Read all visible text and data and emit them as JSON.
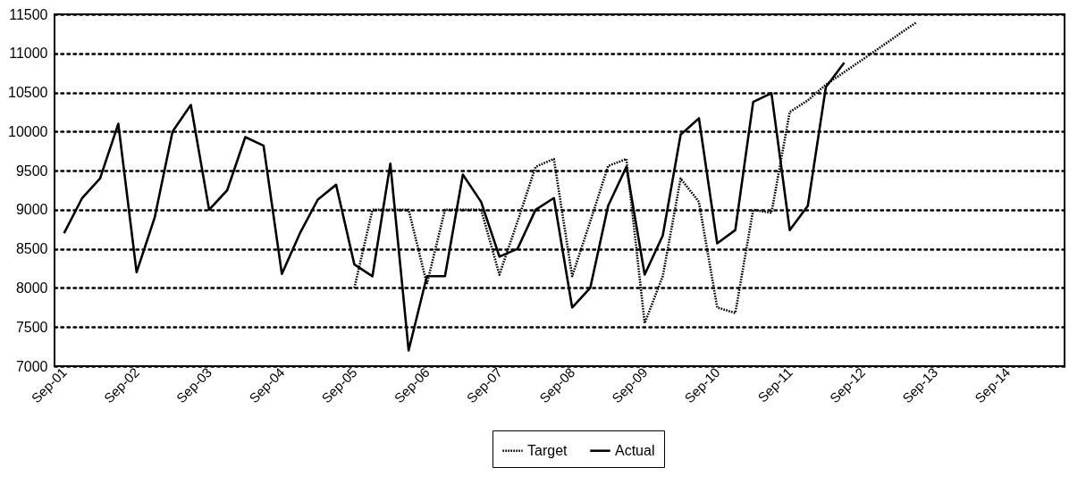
{
  "chart_data": {
    "type": "line",
    "xlim": [
      "2001-07-15",
      "2015-06-15"
    ],
    "xticks": [
      {
        "value": "2001-09",
        "label": "Sep-01"
      },
      {
        "value": "2002-09",
        "label": "Sep-02"
      },
      {
        "value": "2003-09",
        "label": "Sep-03"
      },
      {
        "value": "2004-09",
        "label": "Sep-04"
      },
      {
        "value": "2005-09",
        "label": "Sep-05"
      },
      {
        "value": "2006-09",
        "label": "Sep-06"
      },
      {
        "value": "2007-09",
        "label": "Sep-07"
      },
      {
        "value": "2008-09",
        "label": "Sep-08"
      },
      {
        "value": "2009-09",
        "label": "Sep-09"
      },
      {
        "value": "2010-09",
        "label": "Sep-10"
      },
      {
        "value": "2011-09",
        "label": "Sep-11"
      },
      {
        "value": "2012-09",
        "label": "Sep-12"
      },
      {
        "value": "2013-09",
        "label": "Sep-13"
      },
      {
        "value": "2014-09",
        "label": "Sep-14"
      }
    ],
    "ylim": [
      7000,
      11500
    ],
    "yticks": [
      7000,
      7500,
      8000,
      8500,
      9000,
      9500,
      10000,
      10500,
      11000,
      11500
    ],
    "grid": "y",
    "legend": "bottom",
    "marker": "none",
    "series": [
      {
        "name": "Target",
        "color": "#000000",
        "line_style": "dotted",
        "x": [
          "2005-09",
          "2005-12",
          "2006-03",
          "2006-06",
          "2006-09",
          "2006-12",
          "2007-03",
          "2007-06",
          "2007-09",
          "2007-12",
          "2008-03",
          "2008-06",
          "2008-09",
          "2008-12",
          "2009-03",
          "2009-06",
          "2009-09",
          "2009-12",
          "2010-03",
          "2010-06",
          "2010-09",
          "2010-12",
          "2011-03",
          "2011-06",
          "2011-09",
          "2011-12",
          "2012-03",
          "2012-06",
          "2012-09",
          "2012-12",
          "2013-03",
          "2013-06"
        ],
        "values": [
          8000,
          9000,
          9000,
          9000,
          8050,
          9000,
          9000,
          9000,
          8170,
          8850,
          9550,
          9650,
          8150,
          8850,
          9560,
          9650,
          7550,
          8150,
          9400,
          9100,
          7750,
          7680,
          9000,
          8960,
          10250,
          10400,
          10600,
          10760,
          10920,
          11080,
          11240,
          11400
        ]
      },
      {
        "name": "Actual",
        "color": "#000000",
        "line_style": "solid",
        "x": [
          "2001-09",
          "2001-12",
          "2002-03",
          "2002-06",
          "2002-09",
          "2002-12",
          "2003-03",
          "2003-06",
          "2003-09",
          "2003-12",
          "2004-03",
          "2004-06",
          "2004-09",
          "2004-12",
          "2005-03",
          "2005-06",
          "2005-09",
          "2005-12",
          "2006-03",
          "2006-06",
          "2006-09",
          "2006-12",
          "2007-03",
          "2007-06",
          "2007-09",
          "2007-12",
          "2008-03",
          "2008-06",
          "2008-09",
          "2008-12",
          "2009-03",
          "2009-06",
          "2009-09",
          "2009-12",
          "2010-03",
          "2010-06",
          "2010-09",
          "2010-12",
          "2011-03",
          "2011-06",
          "2011-09",
          "2011-12",
          "2012-03",
          "2012-06"
        ],
        "values": [
          8700,
          9150,
          9400,
          10100,
          8200,
          8900,
          10000,
          10340,
          9000,
          9250,
          9930,
          9820,
          8180,
          8700,
          9130,
          9320,
          8300,
          8150,
          9590,
          7200,
          8150,
          8150,
          9450,
          9100,
          8400,
          8500,
          9000,
          9150,
          7750,
          8000,
          9050,
          9550,
          8170,
          8670,
          9960,
          10170,
          8570,
          8740,
          10380,
          10490,
          8740,
          9050,
          10570,
          10880
        ]
      }
    ]
  }
}
